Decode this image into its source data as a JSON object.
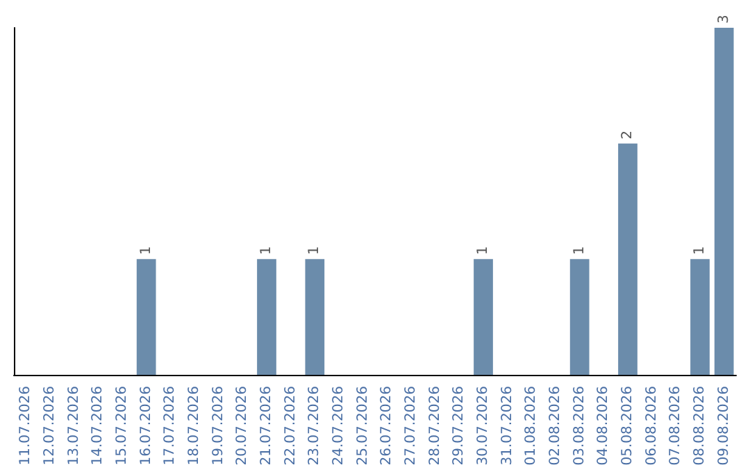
{
  "chart_data": {
    "type": "bar",
    "categories": [
      "11.07.2026",
      "12.07.2026",
      "13.07.2026",
      "14.07.2026",
      "15.07.2026",
      "16.07.2026",
      "17.07.2026",
      "18.07.2026",
      "19.07.2026",
      "20.07.2026",
      "21.07.2026",
      "22.07.2026",
      "23.07.2026",
      "24.07.2026",
      "25.07.2026",
      "26.07.2026",
      "27.07.2026",
      "28.07.2026",
      "29.07.2026",
      "30.07.2026",
      "31.07.2026",
      "01.08.2026",
      "02.08.2026",
      "03.08.2026",
      "04.08.2026",
      "05.08.2026",
      "06.08.2026",
      "07.08.2026",
      "08.08.2026",
      "09.08.2026"
    ],
    "values": [
      0,
      0,
      0,
      0,
      0,
      1,
      0,
      0,
      0,
      0,
      1,
      0,
      1,
      0,
      0,
      0,
      0,
      0,
      0,
      1,
      0,
      0,
      0,
      1,
      0,
      2,
      0,
      0,
      1,
      3
    ],
    "value_labels": [
      null,
      null,
      null,
      null,
      null,
      "1",
      null,
      null,
      null,
      null,
      "1",
      null,
      "1",
      null,
      null,
      null,
      null,
      null,
      null,
      "1",
      null,
      null,
      null,
      "1",
      null,
      "2",
      null,
      null,
      "1",
      "3"
    ],
    "color": "#6b8cab",
    "tick_labels": "x"
  }
}
